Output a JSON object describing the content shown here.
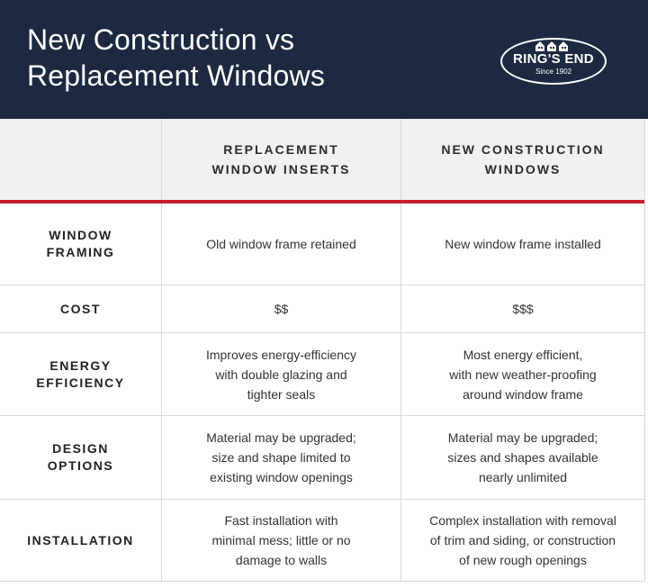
{
  "header": {
    "title_line1": "New Construction vs",
    "title_line2": "Replacement Windows",
    "logo": {
      "name": "RING'S END",
      "since": "Since 1902"
    }
  },
  "colors": {
    "header_bg": "#1c2940",
    "accent_red": "#c8202f",
    "head_row_bg": "#f1f1f1"
  },
  "table": {
    "columns": [
      "",
      "REPLACEMENT WINDOW INSERTS",
      "NEW CONSTRUCTION WINDOWS"
    ],
    "column_lines": [
      [],
      [
        "REPLACEMENT",
        "WINDOW INSERTS"
      ],
      [
        "NEW CONSTRUCTION",
        "WINDOWS"
      ]
    ],
    "rows": [
      {
        "label": [
          "WINDOW",
          "FRAMING"
        ],
        "replacement": [
          "Old window frame retained"
        ],
        "new_construction": [
          "New window frame installed"
        ]
      },
      {
        "label": [
          "COST"
        ],
        "replacement": [
          "$$"
        ],
        "new_construction": [
          "$$$"
        ]
      },
      {
        "label": [
          "ENERGY",
          "EFFICIENCY"
        ],
        "replacement": [
          "Improves energy-efficiency",
          "with double glazing and",
          "tighter seals"
        ],
        "new_construction": [
          "Most energy efficient,",
          "with new weather-proofing",
          "around window frame"
        ]
      },
      {
        "label": [
          "DESIGN",
          "OPTIONS"
        ],
        "replacement": [
          "Material may be upgraded;",
          "size and shape limited to",
          "existing window openings"
        ],
        "new_construction": [
          "Material may be upgraded;",
          "sizes and shapes available",
          "nearly unlimited"
        ]
      },
      {
        "label": [
          "INSTALLATION"
        ],
        "replacement": [
          "Fast installation with",
          "minimal mess; little or no",
          "damage to walls"
        ],
        "new_construction": [
          "Complex installation with removal",
          "of trim and siding, or construction",
          "of new rough openings"
        ]
      }
    ]
  }
}
